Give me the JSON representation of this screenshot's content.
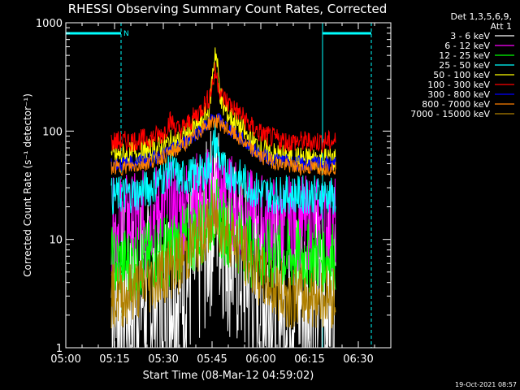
{
  "chart_data": {
    "type": "line",
    "title": "RHESSI Observing Summary Count Rates, Corrected",
    "xlabel": "Start Time (08-Mar-12 04:59:02)",
    "ylabel": "Corrected Count Rate (s⁻¹ detector⁻¹)",
    "yscale": "log",
    "ylim": [
      1,
      1000
    ],
    "xlim": [
      "05:00",
      "06:40"
    ],
    "xticks": [
      "05:00",
      "05:15",
      "05:30",
      "05:45",
      "06:00",
      "06:15",
      "06:30"
    ],
    "yticks": [
      "1",
      "10",
      "100",
      "1000"
    ],
    "legend_header": [
      "Det 1,3,5,6,9,",
      "Att 1"
    ],
    "legend_position": "right",
    "timestamp": "19-Oct-2021 08:57",
    "night_label": "N",
    "day_night_bars": [
      {
        "start": "05:00",
        "end": "05:17"
      },
      {
        "start": "06:19",
        "end": "06:34"
      }
    ],
    "data_gaps": [
      "05:00",
      "05:17",
      "06:19",
      "06:34"
    ],
    "x": [
      "05:14",
      "05:18",
      "05:22",
      "05:26",
      "05:30",
      "05:32",
      "05:35",
      "05:38",
      "05:41",
      "05:44",
      "05:46",
      "05:48",
      "05:51",
      "05:54",
      "05:57",
      "06:00",
      "06:04",
      "06:08",
      "06:12",
      "06:16",
      "06:20",
      "06:23"
    ],
    "series": [
      {
        "name": "3 - 6 keV",
        "color": "#ffffff",
        "values": [
          3,
          3,
          3,
          3,
          3.5,
          3.5,
          4,
          5,
          7,
          12,
          25,
          14,
          8,
          6,
          4,
          3,
          3,
          3,
          3,
          3,
          3,
          3
        ]
      },
      {
        "name": "6 - 12 keV",
        "color": "#ff00ff",
        "values": [
          13,
          15,
          15,
          17,
          20,
          19,
          19,
          22,
          24,
          26,
          30,
          24,
          22,
          18,
          16,
          15,
          14,
          14,
          14,
          14,
          14,
          14
        ]
      },
      {
        "name": "12 - 25 keV",
        "color": "#00ff00",
        "values": [
          6,
          6,
          6,
          7,
          8,
          8,
          9,
          10,
          12,
          15,
          19,
          13,
          12,
          10,
          8,
          7,
          7,
          7,
          7,
          7,
          7,
          7
        ]
      },
      {
        "name": "25 - 50 keV",
        "color": "#00ffff",
        "values": [
          25,
          26,
          27,
          30,
          38,
          47,
          36,
          38,
          40,
          46,
          85,
          45,
          40,
          36,
          30,
          27,
          26,
          26,
          26,
          26,
          26,
          24
        ]
      },
      {
        "name": "50 - 100 keV",
        "color": "#ffff00",
        "values": [
          58,
          60,
          62,
          65,
          72,
          78,
          80,
          95,
          115,
          150,
          580,
          170,
          130,
          105,
          80,
          70,
          60,
          57,
          55,
          55,
          55,
          55
        ]
      },
      {
        "name": "100 - 300 keV",
        "color": "#ff0000",
        "values": [
          80,
          80,
          82,
          86,
          95,
          125,
          100,
          120,
          150,
          200,
          350,
          210,
          170,
          140,
          110,
          95,
          85,
          80,
          80,
          80,
          80,
          80
        ]
      },
      {
        "name": "300 - 800 keV",
        "color": "#0000ff",
        "values": [
          50,
          50,
          52,
          55,
          60,
          65,
          72,
          85,
          100,
          120,
          135,
          120,
          100,
          85,
          70,
          60,
          55,
          52,
          50,
          50,
          50,
          50
        ]
      },
      {
        "name": "800 - 7000 keV",
        "color": "#ff8000",
        "values": [
          46,
          46,
          48,
          52,
          58,
          62,
          70,
          82,
          98,
          118,
          125,
          115,
          98,
          82,
          68,
          58,
          52,
          48,
          46,
          46,
          46,
          46
        ]
      },
      {
        "name": "7000 - 15000 keV",
        "color": "#b08000",
        "values": [
          3,
          3,
          3.5,
          4,
          5,
          5.5,
          6,
          8,
          10,
          13,
          16,
          13,
          11,
          8,
          6,
          4.5,
          3.5,
          3,
          3,
          3,
          3,
          3
        ]
      }
    ]
  }
}
